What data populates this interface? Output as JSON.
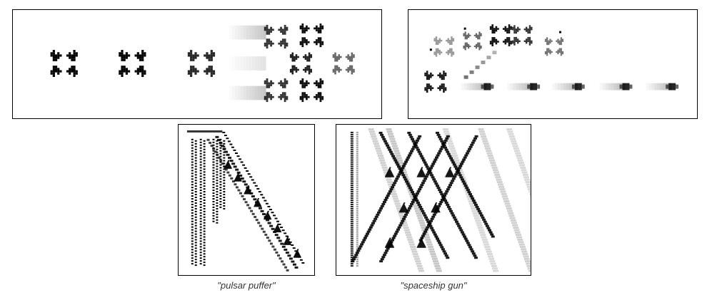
{
  "captions": {
    "pulsar": "\"pulsar puffer\"",
    "gun": "\"spaceship gun\""
  },
  "colors": {
    "ink": "#000000",
    "background": "#ffffff",
    "border": "#000000"
  }
}
